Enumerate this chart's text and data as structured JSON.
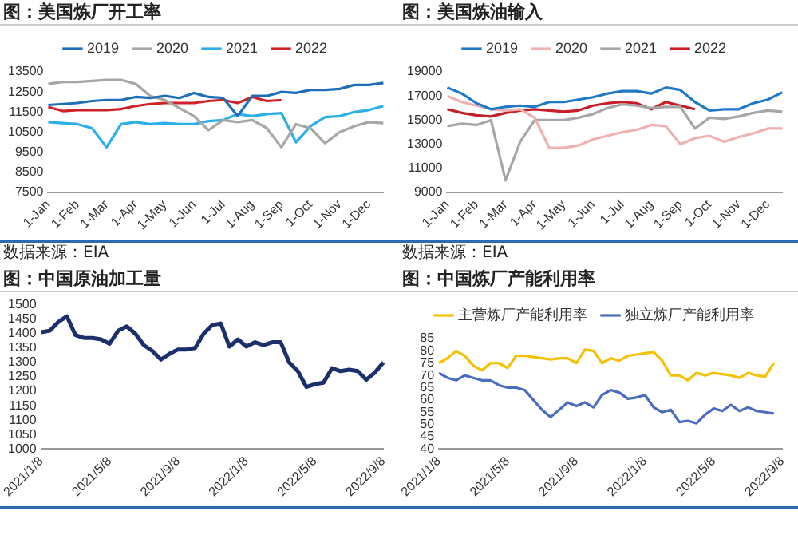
{
  "chart_data": [
    {
      "type": "line",
      "title": "图：美国炼厂开工率",
      "annotations": [
        "数据来源：EIA"
      ],
      "legend": "top",
      "marker": "none",
      "categories": [
        "1-Jan",
        null,
        "1-Feb",
        null,
        "1-Mar",
        null,
        "1-Apr",
        null,
        "1-May",
        null,
        "1-Jun",
        null,
        "1-Jul",
        null,
        "1-Aug",
        null,
        "1-Sep",
        null,
        "1-Oct",
        null,
        "1-Nov",
        null,
        "1-Dec",
        null
      ],
      "ylim": [
        7500,
        13500
      ],
      "yticks": [
        7500,
        8500,
        9500,
        10500,
        11500,
        12500,
        13500
      ],
      "series": [
        {
          "name": "2019",
          "color": "#1f6fb8",
          "values": [
            11850,
            11900,
            11950,
            12050,
            12100,
            12100,
            12250,
            12200,
            12300,
            12200,
            12450,
            12250,
            12200,
            11300,
            12300,
            12300,
            12500,
            12450,
            12600,
            12600,
            12650,
            12850,
            12850,
            12950
          ]
        },
        {
          "name": "2020",
          "color": "#a6a6a6",
          "values": [
            12900,
            13000,
            13000,
            13050,
            13100,
            13100,
            12900,
            12300,
            12100,
            11700,
            11300,
            10600,
            11100,
            11000,
            11100,
            10700,
            9750,
            10900,
            10700,
            9950,
            10500,
            10800,
            11000,
            10950
          ]
        },
        {
          "name": "2021",
          "color": "#2ab0e6",
          "values": [
            11000,
            10950,
            10900,
            10700,
            9750,
            10900,
            11000,
            10900,
            10950,
            10900,
            10900,
            11050,
            11100,
            11400,
            11300,
            11400,
            11450,
            10000,
            10800,
            11250,
            11300,
            11500,
            11600,
            11800
          ]
        },
        {
          "name": "2022",
          "color": "#d0202a",
          "values": [
            11750,
            11550,
            11600,
            11600,
            11600,
            11650,
            11800,
            11900,
            11950,
            11950,
            11950,
            12050,
            12100,
            11950,
            12250,
            12050,
            12100,
            null,
            null,
            null,
            null,
            null,
            null,
            null
          ]
        }
      ]
    },
    {
      "type": "line",
      "title": "图：美国炼油输入",
      "annotations": [
        "数据来源：EIA"
      ],
      "legend": "top",
      "marker": "none",
      "categories": [
        "1-Jan",
        null,
        "1-Feb",
        null,
        "1-Mar",
        null,
        "1-Apr",
        null,
        "1-May",
        null,
        "1-Jun",
        null,
        "1-Jul",
        null,
        "1-Aug",
        null,
        "1-Sep",
        null,
        "1-Oct",
        null,
        "1-Nov",
        null,
        "1-Dec",
        null
      ],
      "ylim": [
        9000,
        19000
      ],
      "yticks": [
        9000,
        11000,
        13000,
        15000,
        17000,
        19000
      ],
      "series": [
        {
          "name": "2019",
          "color": "#1f78c8",
          "values": [
            17700,
            17200,
            16400,
            15900,
            16100,
            16200,
            16100,
            16500,
            16500,
            16700,
            16900,
            17200,
            17400,
            17400,
            17200,
            17700,
            17500,
            16500,
            15800,
            15900,
            15900,
            16400,
            16700,
            17300
          ]
        },
        {
          "name": "2020",
          "color": "#f0b0b0",
          "values": [
            17000,
            16500,
            16200,
            15900,
            15800,
            15900,
            15200,
            12700,
            12700,
            12900,
            13400,
            13700,
            14000,
            14200,
            14600,
            14500,
            13000,
            13500,
            13700,
            13200,
            13600,
            13900,
            14300,
            14300
          ]
        },
        {
          "name": "2021",
          "color": "#a6a6a6",
          "values": [
            14500,
            14700,
            14600,
            15000,
            10000,
            13200,
            15000,
            15000,
            15000,
            15200,
            15500,
            16000,
            16300,
            16200,
            16000,
            16100,
            16100,
            14300,
            15200,
            15100,
            15300,
            15600,
            15800,
            15700
          ]
        },
        {
          "name": "2022",
          "color": "#c81e28",
          "values": [
            15900,
            15600,
            15400,
            15300,
            15600,
            15800,
            15900,
            15800,
            15700,
            15800,
            16200,
            16400,
            16500,
            16400,
            15900,
            16500,
            16200,
            15900,
            null,
            null,
            null,
            null,
            null,
            null
          ]
        }
      ]
    },
    {
      "type": "line",
      "title": "图：中国原油加工量",
      "marker": "none",
      "categories": [
        "2021/1/8",
        null,
        null,
        null,
        null,
        null,
        null,
        null,
        "2021/5/8",
        null,
        null,
        null,
        null,
        null,
        null,
        null,
        "2021/9/8",
        null,
        null,
        null,
        null,
        null,
        null,
        null,
        "2022/1/8",
        null,
        null,
        null,
        null,
        null,
        null,
        null,
        "2022/5/8",
        null,
        null,
        null,
        null,
        null,
        null,
        null,
        "2022/9/8"
      ],
      "ylim": [
        1000,
        1500
      ],
      "yticks": [
        1000,
        1050,
        1100,
        1150,
        1200,
        1250,
        1300,
        1350,
        1400,
        1450,
        1500
      ],
      "series": [
        {
          "color": "#1a2f6b",
          "values": [
            1405,
            1410,
            1440,
            1460,
            1395,
            1385,
            1385,
            1380,
            1365,
            1410,
            1425,
            1400,
            1360,
            1340,
            1310,
            1330,
            1345,
            1345,
            1350,
            1400,
            1430,
            1435,
            1355,
            1380,
            1355,
            1370,
            1360,
            1370,
            1370,
            1300,
            1270,
            1215,
            1225,
            1230,
            1280,
            1270,
            1275,
            1270,
            1240,
            1265,
            1300
          ]
        }
      ]
    },
    {
      "type": "line",
      "title": "图：中国炼厂产能利用率",
      "legend": "top",
      "marker": "none",
      "categories": [
        "2021/1/8",
        null,
        null,
        null,
        null,
        null,
        null,
        null,
        "2021/5/8",
        null,
        null,
        null,
        null,
        null,
        null,
        null,
        "2021/9/8",
        null,
        null,
        null,
        null,
        null,
        null,
        null,
        "2022/1/8",
        null,
        null,
        null,
        null,
        null,
        null,
        null,
        "2022/5/8",
        null,
        null,
        null,
        null,
        null,
        null,
        null,
        "2022/9/8"
      ],
      "ylim": [
        40,
        85
      ],
      "yticks": [
        40,
        45,
        50,
        55,
        60,
        65,
        70,
        75,
        80,
        85
      ],
      "series": [
        {
          "name": "主营炼厂产能利用率",
          "color": "#f5c000",
          "values": [
            75,
            77,
            80,
            78,
            74,
            72,
            75,
            75,
            73,
            78,
            78,
            77.5,
            77,
            76.5,
            77,
            77,
            75,
            80.5,
            80,
            75,
            77,
            76,
            78,
            78.5,
            79,
            79.5,
            76,
            70,
            70,
            68,
            71,
            70,
            71,
            70.5,
            70,
            69,
            71,
            70,
            69.5,
            75,
            null
          ]
        },
        {
          "name": "独立炼厂产能利用率",
          "color": "#4a6cc0",
          "values": [
            71,
            69,
            68,
            70,
            69,
            68,
            68,
            66,
            65,
            65,
            64,
            60,
            56,
            53,
            56,
            59,
            57.5,
            59,
            57,
            62,
            64,
            63,
            60.5,
            61,
            62,
            57,
            55,
            56,
            51,
            51.5,
            50.5,
            54,
            56.5,
            55.5,
            58,
            55.5,
            57,
            55.5,
            55,
            54.5,
            null
          ]
        }
      ]
    }
  ]
}
